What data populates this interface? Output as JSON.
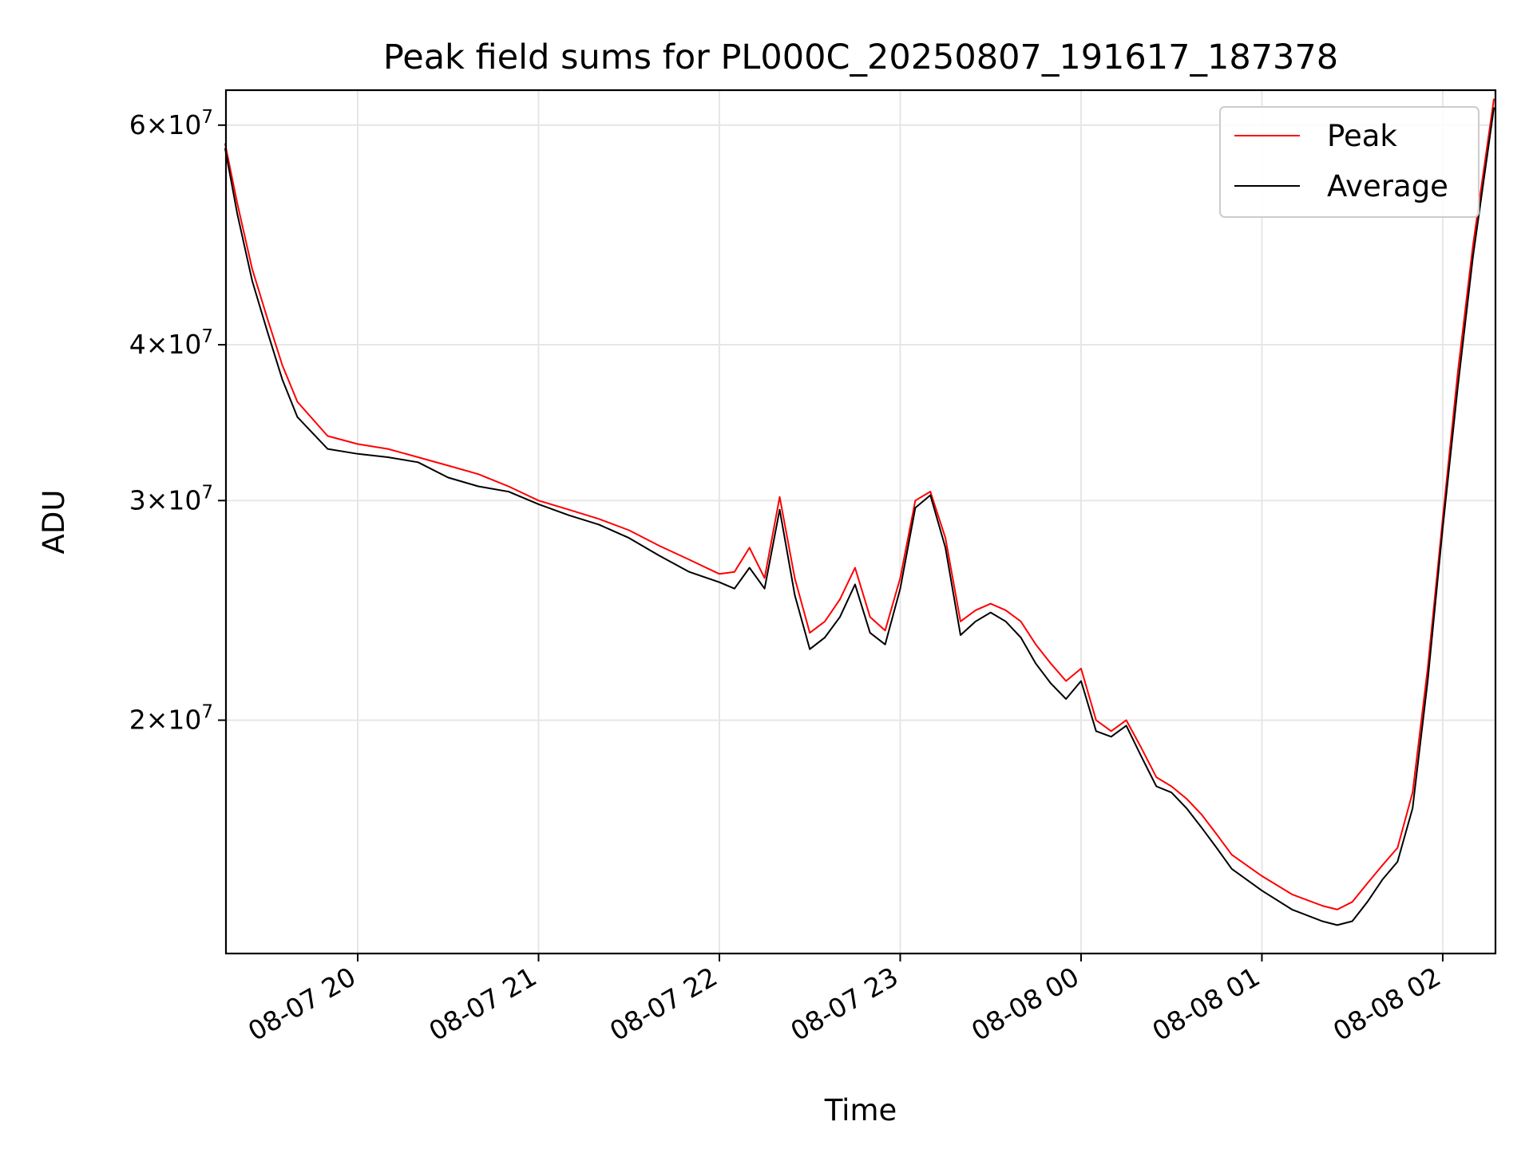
{
  "chart_data": {
    "type": "line",
    "title": "Peak field sums for PL000C_20250807_191617_187378",
    "xlabel": "Time",
    "ylabel": "ADU",
    "y_scale": "log",
    "ylim": [
      13000000,
      64000000
    ],
    "xlim": [
      "2025-08-07 19:16:17",
      "2025-08-08 02:17:30"
    ],
    "grid": true,
    "legend_position": "upper-right",
    "x_ticks": [
      {
        "t": "2025-08-07 20:00",
        "label": "08-07 20"
      },
      {
        "t": "2025-08-07 21:00",
        "label": "08-07 21"
      },
      {
        "t": "2025-08-07 22:00",
        "label": "08-07 22"
      },
      {
        "t": "2025-08-07 23:00",
        "label": "08-07 23"
      },
      {
        "t": "2025-08-08 00:00",
        "label": "08-08 00"
      },
      {
        "t": "2025-08-08 01:00",
        "label": "08-08 01"
      },
      {
        "t": "2025-08-08 02:00",
        "label": "08-08 02"
      }
    ],
    "y_ticks": [
      {
        "value": 20000000,
        "mant": "2",
        "exp": "7"
      },
      {
        "value": 30000000,
        "mant": "3",
        "exp": "7"
      },
      {
        "value": 40000000,
        "mant": "4",
        "exp": "7"
      },
      {
        "value": 60000000,
        "mant": "6",
        "exp": "7"
      }
    ],
    "series": [
      {
        "name": "Peak",
        "color": "#ff0000",
        "x": [
          "2025-08-07 19:16",
          "2025-08-07 19:20",
          "2025-08-07 19:25",
          "2025-08-07 19:30",
          "2025-08-07 19:35",
          "2025-08-07 19:40",
          "2025-08-07 19:50",
          "2025-08-07 20:00",
          "2025-08-07 20:10",
          "2025-08-07 20:20",
          "2025-08-07 20:30",
          "2025-08-07 20:40",
          "2025-08-07 20:50",
          "2025-08-07 21:00",
          "2025-08-07 21:10",
          "2025-08-07 21:20",
          "2025-08-07 21:30",
          "2025-08-07 21:40",
          "2025-08-07 21:50",
          "2025-08-07 22:00",
          "2025-08-07 22:05",
          "2025-08-07 22:10",
          "2025-08-07 22:15",
          "2025-08-07 22:20",
          "2025-08-07 22:25",
          "2025-08-07 22:30",
          "2025-08-07 22:35",
          "2025-08-07 22:40",
          "2025-08-07 22:45",
          "2025-08-07 22:50",
          "2025-08-07 22:55",
          "2025-08-07 23:00",
          "2025-08-07 23:05",
          "2025-08-07 23:10",
          "2025-08-07 23:15",
          "2025-08-07 23:20",
          "2025-08-07 23:25",
          "2025-08-07 23:30",
          "2025-08-07 23:35",
          "2025-08-07 23:40",
          "2025-08-07 23:45",
          "2025-08-07 23:50",
          "2025-08-07 23:55",
          "2025-08-08 00:00",
          "2025-08-08 00:05",
          "2025-08-08 00:10",
          "2025-08-08 00:15",
          "2025-08-08 00:20",
          "2025-08-08 00:25",
          "2025-08-08 00:30",
          "2025-08-08 00:35",
          "2025-08-08 00:40",
          "2025-08-08 00:45",
          "2025-08-08 00:50",
          "2025-08-08 01:00",
          "2025-08-08 01:10",
          "2025-08-08 01:20",
          "2025-08-08 01:25",
          "2025-08-08 01:30",
          "2025-08-08 01:35",
          "2025-08-08 01:40",
          "2025-08-08 01:45",
          "2025-08-08 01:50",
          "2025-08-08 01:55",
          "2025-08-08 02:00",
          "2025-08-08 02:05",
          "2025-08-08 02:10",
          "2025-08-08 02:17"
        ],
        "values": [
          58000000,
          52000000,
          46000000,
          42000000,
          38500000,
          36000000,
          33800000,
          33300000,
          33000000,
          32500000,
          32000000,
          31500000,
          30800000,
          30000000,
          29500000,
          29000000,
          28400000,
          27600000,
          26900000,
          26200000,
          26300000,
          27500000,
          26000000,
          30200000,
          26000000,
          23500000,
          24000000,
          25000000,
          26500000,
          24200000,
          23600000,
          26000000,
          30000000,
          30500000,
          28000000,
          24000000,
          24500000,
          24800000,
          24500000,
          24000000,
          23000000,
          22200000,
          21500000,
          22000000,
          20000000,
          19600000,
          20000000,
          19000000,
          18000000,
          17700000,
          17300000,
          16800000,
          16200000,
          15600000,
          15000000,
          14500000,
          14200000,
          14100000,
          14300000,
          14800000,
          15300000,
          15800000,
          17500000,
          22000000,
          29000000,
          38000000,
          48000000,
          63000000
        ]
      },
      {
        "name": "Average",
        "color": "#000000",
        "x": [
          "2025-08-07 19:16",
          "2025-08-07 19:20",
          "2025-08-07 19:25",
          "2025-08-07 19:30",
          "2025-08-07 19:35",
          "2025-08-07 19:40",
          "2025-08-07 19:50",
          "2025-08-07 20:00",
          "2025-08-07 20:10",
          "2025-08-07 20:20",
          "2025-08-07 20:30",
          "2025-08-07 20:40",
          "2025-08-07 20:50",
          "2025-08-07 21:00",
          "2025-08-07 21:10",
          "2025-08-07 21:20",
          "2025-08-07 21:30",
          "2025-08-07 21:40",
          "2025-08-07 21:50",
          "2025-08-07 22:00",
          "2025-08-07 22:05",
          "2025-08-07 22:10",
          "2025-08-07 22:15",
          "2025-08-07 22:20",
          "2025-08-07 22:25",
          "2025-08-07 22:30",
          "2025-08-07 22:35",
          "2025-08-07 22:40",
          "2025-08-07 22:45",
          "2025-08-07 22:50",
          "2025-08-07 22:55",
          "2025-08-07 23:00",
          "2025-08-07 23:05",
          "2025-08-07 23:10",
          "2025-08-07 23:15",
          "2025-08-07 23:20",
          "2025-08-07 23:25",
          "2025-08-07 23:30",
          "2025-08-07 23:35",
          "2025-08-07 23:40",
          "2025-08-07 23:45",
          "2025-08-07 23:50",
          "2025-08-07 23:55",
          "2025-08-08 00:00",
          "2025-08-08 00:05",
          "2025-08-08 00:10",
          "2025-08-08 00:15",
          "2025-08-08 00:20",
          "2025-08-08 00:25",
          "2025-08-08 00:30",
          "2025-08-08 00:35",
          "2025-08-08 00:40",
          "2025-08-08 00:45",
          "2025-08-08 00:50",
          "2025-08-08 01:00",
          "2025-08-08 01:10",
          "2025-08-08 01:20",
          "2025-08-08 01:25",
          "2025-08-08 01:30",
          "2025-08-08 01:35",
          "2025-08-08 01:40",
          "2025-08-08 01:45",
          "2025-08-08 01:50",
          "2025-08-08 01:55",
          "2025-08-08 02:00",
          "2025-08-08 02:05",
          "2025-08-08 02:10",
          "2025-08-08 02:17"
        ],
        "values": [
          57500000,
          51000000,
          45000000,
          41000000,
          37500000,
          35000000,
          33000000,
          32700000,
          32500000,
          32200000,
          31300000,
          30800000,
          30500000,
          29800000,
          29200000,
          28700000,
          28000000,
          27100000,
          26300000,
          25800000,
          25500000,
          26500000,
          25500000,
          29500000,
          25200000,
          22800000,
          23300000,
          24200000,
          25700000,
          23500000,
          23000000,
          25500000,
          29600000,
          30300000,
          27500000,
          23400000,
          24000000,
          24400000,
          24000000,
          23300000,
          22200000,
          21400000,
          20800000,
          21500000,
          19600000,
          19400000,
          19800000,
          18700000,
          17700000,
          17500000,
          17000000,
          16400000,
          15800000,
          15200000,
          14600000,
          14100000,
          13800000,
          13700000,
          13800000,
          14300000,
          14900000,
          15400000,
          17000000,
          21500000,
          28500000,
          37000000,
          47000000,
          62000000
        ]
      }
    ]
  }
}
